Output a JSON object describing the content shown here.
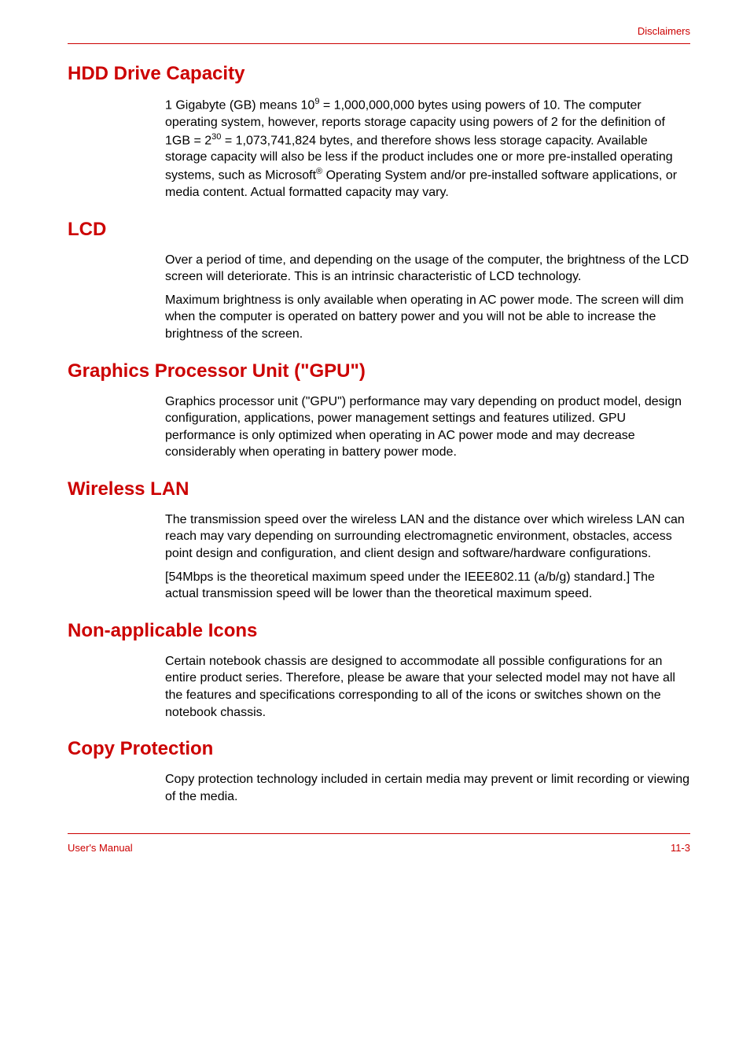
{
  "header": {
    "label": "Disclaimers"
  },
  "sections": {
    "hdd": {
      "title": "HDD Drive Capacity",
      "p1_a": "1 Gigabyte (GB) means 10",
      "p1_sup1": "9",
      "p1_b": " = 1,000,000,000 bytes using powers of 10. The computer operating system, however, reports storage capacity using powers of 2 for the definition of 1GB = 2",
      "p1_sup2": "30",
      "p1_c": " = 1,073,741,824 bytes, and therefore shows less storage capacity. Available storage capacity will also be less if the product includes one or more pre-installed operating systems, such as Microsoft",
      "p1_sup3": "®",
      "p1_d": " Operating System and/or pre-installed software applications, or media content. Actual formatted capacity may vary."
    },
    "lcd": {
      "title": "LCD",
      "p1": "Over a period of time, and depending on the usage of the computer, the brightness of the LCD screen will deteriorate. This is an intrinsic characteristic of LCD technology.",
      "p2": "Maximum brightness is only available when operating in AC power mode. The screen will dim when the computer is operated on battery power and you will not be able to increase the brightness of the screen."
    },
    "gpu": {
      "title": "Graphics Processor Unit (\"GPU\")",
      "p1": "Graphics processor unit (\"GPU\") performance may vary depending on product model, design configuration, applications, power management settings and features utilized. GPU performance is only optimized when operating in AC power mode and may decrease considerably when operating in battery power mode."
    },
    "wlan": {
      "title": "Wireless LAN",
      "p1": "The transmission speed over the wireless LAN and the distance over which wireless LAN can reach may vary depending on surrounding electromagnetic environment, obstacles, access point design and configuration, and client design and software/hardware configurations.",
      "p2": "[54Mbps is the theoretical maximum speed under the IEEE802.11 (a/b/g) standard.] The actual transmission speed will be lower than the theoretical maximum speed."
    },
    "icons": {
      "title": "Non-applicable Icons",
      "p1": "Certain notebook chassis are designed to accommodate all possible configurations for an entire product series. Therefore, please be aware that your selected model may not have all the features and specifications corresponding to all of the icons or switches shown on the notebook chassis."
    },
    "copy": {
      "title": "Copy Protection",
      "p1": "Copy protection technology included in certain media may prevent or limit recording or viewing of the media."
    }
  },
  "footer": {
    "left": "User's Manual",
    "right": "11-3"
  },
  "colors": {
    "accent": "#cc0000",
    "text": "#000000",
    "background": "#ffffff"
  },
  "typography": {
    "heading_fontsize": 24,
    "body_fontsize": 16,
    "header_footer_fontsize": 13
  }
}
